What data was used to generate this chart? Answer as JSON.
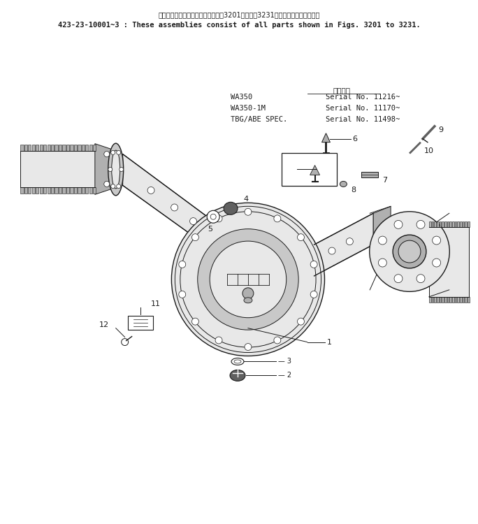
{
  "header_line1": "これらのアセンブリの構成部品は㄂3201図から㄂3231図の部品まで含みます。",
  "header_line2": "423-23-10001~3 : These assemblies consist of all parts shown in Figs. 3201 to 3231.",
  "bg_color": "#ffffff",
  "text_color": "#000000",
  "fig_width": 6.84,
  "fig_height": 7.5,
  "dpi": 100,
  "spec_label": "適用号等",
  "spec_lines": [
    [
      "WA350",
      "Serial No. 11216~"
    ],
    [
      "WA350-1M",
      "Serial No. 11170~"
    ],
    [
      "TBG/ABE SPEC.",
      "Serial No. 11498~"
    ]
  ],
  "header_fontsize": 7.5,
  "label_fontsize": 8,
  "spec_fontsize": 7.5
}
